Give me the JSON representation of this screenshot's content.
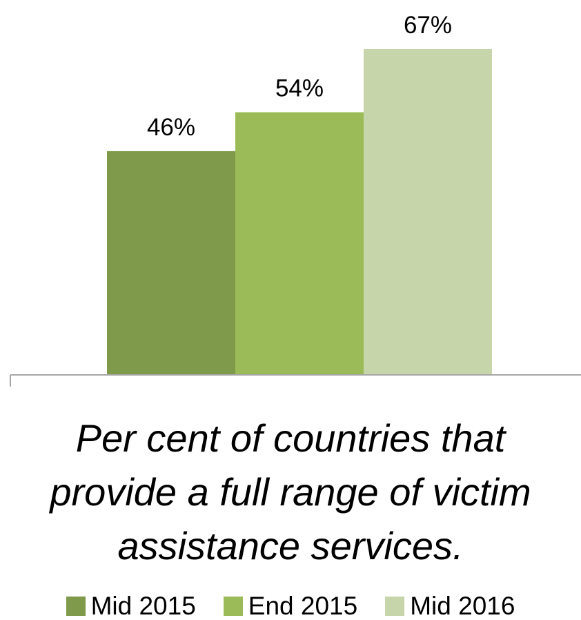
{
  "chart_data": {
    "type": "bar",
    "title": "Per cent of countries that provide a full range of victim assistance services.",
    "xlabel": "",
    "ylabel": "",
    "ylim": [
      0,
      100
    ],
    "grid": false,
    "legend_position": "bottom",
    "series": [
      {
        "name": "Mid 2015",
        "value": 46,
        "label": "46%",
        "color": "#7f9a4a"
      },
      {
        "name": "End 2015",
        "value": 54,
        "label": "54%",
        "color": "#9bbb59"
      },
      {
        "name": "Mid 2016",
        "value": 67,
        "label": "67%",
        "color": "#c6d6aa"
      }
    ]
  }
}
